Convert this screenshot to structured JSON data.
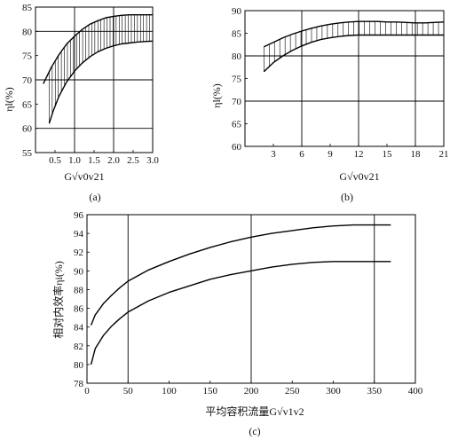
{
  "chart_data": [
    {
      "id": "a",
      "type": "line",
      "caption": "(a)",
      "xlabel": "G√v0v21",
      "ylabel": "ηl(%)",
      "xlim": [
        0,
        3.0
      ],
      "ylim": [
        55,
        85
      ],
      "xticks": [
        0.5,
        1.0,
        1.5,
        2.0,
        2.5,
        3.0
      ],
      "xtick_labels": [
        "0.5",
        "1.0",
        "1.5",
        "2.0",
        "2.5",
        "3.0"
      ],
      "yticks": [
        55,
        60,
        65,
        70,
        75,
        80,
        85
      ],
      "grid_x": [
        1.0,
        2.0,
        3.0
      ],
      "grid_y": [
        60,
        70,
        80
      ],
      "shaded_band": true,
      "series": [
        {
          "x": [
            0.2,
            0.4,
            0.6,
            0.8,
            1.0,
            1.2,
            1.4,
            1.6,
            1.8,
            2.0,
            2.2,
            2.4,
            2.6,
            2.8,
            3.0
          ],
          "values": [
            69.2,
            72.5,
            75.2,
            77.4,
            79.0,
            80.4,
            81.5,
            82.2,
            82.8,
            83.1,
            83.3,
            83.4,
            83.4,
            83.4,
            83.4
          ]
        },
        {
          "x": [
            0.35,
            0.45,
            0.6,
            0.8,
            1.0,
            1.2,
            1.4,
            1.6,
            1.8,
            2.0,
            2.2,
            2.4,
            2.6,
            2.8,
            3.0
          ],
          "values": [
            61.0,
            63.5,
            66.6,
            69.6,
            71.8,
            73.5,
            74.8,
            75.8,
            76.5,
            77.0,
            77.4,
            77.6,
            77.8,
            77.9,
            78.0
          ]
        }
      ]
    },
    {
      "id": "b",
      "type": "line",
      "caption": "(b)",
      "xlabel": "G√v0v21",
      "ylabel": "ηl(%)",
      "xlim": [
        0,
        21
      ],
      "ylim": [
        60,
        90
      ],
      "xticks": [
        3,
        6,
        9,
        12,
        15,
        18,
        21
      ],
      "xtick_labels": [
        "3",
        "6",
        "9",
        "12",
        "15",
        "18",
        "21"
      ],
      "yticks": [
        60,
        65,
        70,
        75,
        80,
        85,
        90
      ],
      "grid_x": [
        6,
        12,
        18
      ],
      "grid_y": [
        70,
        80
      ],
      "shaded_band": true,
      "series": [
        {
          "x": [
            2,
            3,
            4,
            5,
            6,
            7,
            8,
            9,
            10,
            11,
            12,
            13,
            14,
            15,
            16,
            17,
            18,
            19,
            20,
            21
          ],
          "values": [
            82.0,
            83.0,
            84.0,
            84.8,
            85.5,
            86.1,
            86.6,
            87.0,
            87.3,
            87.5,
            87.6,
            87.6,
            87.6,
            87.5,
            87.5,
            87.4,
            87.3,
            87.3,
            87.4,
            87.5
          ]
        },
        {
          "x": [
            2,
            3,
            4,
            5,
            6,
            7,
            8,
            9,
            10,
            11,
            12,
            13,
            14,
            15,
            16,
            17,
            18,
            19,
            20,
            21
          ],
          "values": [
            76.5,
            78.5,
            80.0,
            81.2,
            82.2,
            83.0,
            83.6,
            84.0,
            84.3,
            84.5,
            84.6,
            84.6,
            84.6,
            84.6,
            84.6,
            84.6,
            84.6,
            84.6,
            84.6,
            84.6
          ]
        }
      ]
    },
    {
      "id": "c",
      "type": "line",
      "caption": "(c)",
      "xlabel": "平均容积流量G√v1v2",
      "ylabel": "相对内效率ηi(%)",
      "xlim": [
        0,
        400
      ],
      "ylim": [
        78,
        96
      ],
      "xticks": [
        0,
        50,
        100,
        150,
        200,
        250,
        300,
        350,
        400
      ],
      "xtick_labels": [
        "0",
        "50",
        "100",
        "150",
        "200",
        "250",
        "300",
        "350",
        "400"
      ],
      "yticks": [
        78,
        80,
        82,
        84,
        86,
        88,
        90,
        92,
        94,
        96
      ],
      "grid_x": [
        50,
        200,
        350
      ],
      "grid_y": [],
      "shaded_band": false,
      "series": [
        {
          "x": [
            5,
            10,
            20,
            30,
            40,
            50,
            75,
            100,
            125,
            150,
            175,
            200,
            225,
            250,
            275,
            300,
            325,
            350,
            370
          ],
          "values": [
            84.2,
            85.3,
            86.5,
            87.4,
            88.2,
            88.9,
            90.1,
            91.0,
            91.8,
            92.5,
            93.1,
            93.6,
            94.0,
            94.3,
            94.6,
            94.8,
            94.9,
            94.9,
            94.9
          ]
        },
        {
          "x": [
            5,
            10,
            20,
            30,
            40,
            50,
            75,
            100,
            125,
            150,
            175,
            200,
            225,
            250,
            275,
            300,
            325,
            350,
            370
          ],
          "values": [
            80.0,
            81.7,
            83.1,
            84.1,
            84.9,
            85.6,
            86.8,
            87.7,
            88.4,
            89.1,
            89.6,
            90.0,
            90.4,
            90.7,
            90.9,
            91.0,
            91.0,
            91.0,
            91.0
          ]
        }
      ]
    }
  ]
}
